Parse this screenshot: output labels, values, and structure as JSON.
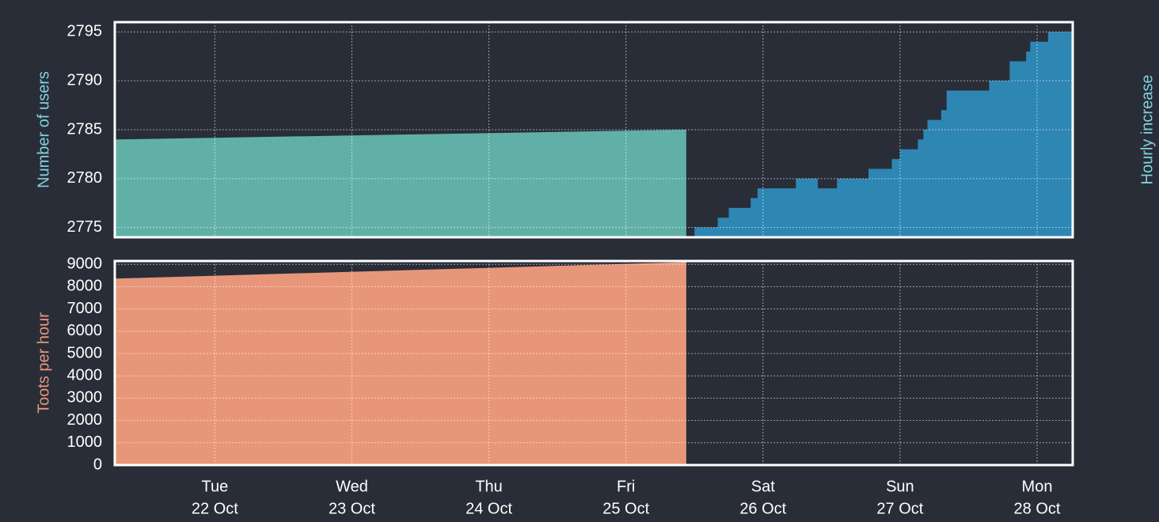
{
  "chart_data": [
    {
      "type": "area",
      "ylabel": "Number of users",
      "y2label": "Hourly increase",
      "xlim": [
        21.27,
        28.26
      ],
      "xticks": [
        22,
        23,
        24,
        25,
        26,
        27,
        28
      ],
      "ylim": [
        2774,
        2796
      ],
      "yticks": [
        2775,
        2780,
        2785,
        2790,
        2795
      ],
      "grid": true,
      "series": [
        {
          "color": "#61b0a7",
          "step": false,
          "x": [
            21.27,
            25.44
          ],
          "values": [
            2784,
            2785
          ]
        },
        {
          "color": "#2e86b3",
          "step": true,
          "x": [
            25.5,
            25.67,
            25.75,
            25.91,
            25.96,
            26.24,
            26.4,
            26.54,
            26.77,
            26.94,
            27.0,
            27.13,
            27.17,
            27.2,
            27.3,
            27.34,
            27.65,
            27.8,
            27.92,
            27.95,
            28.08,
            28.26
          ],
          "values": [
            2775,
            2776,
            2777,
            2778,
            2779,
            2780,
            2779,
            2780,
            2781,
            2782,
            2783,
            2784,
            2785,
            2786,
            2787,
            2789,
            2790,
            2792,
            2793,
            2794,
            2795,
            2795
          ]
        }
      ]
    },
    {
      "type": "area",
      "ylabel": "Toots per hour",
      "xlim": [
        21.27,
        28.26
      ],
      "xticks": [
        {
          "value": 22,
          "label": [
            "Tue",
            "22 Oct"
          ]
        },
        {
          "value": 23,
          "label": [
            "Wed",
            "23 Oct"
          ]
        },
        {
          "value": 24,
          "label": [
            "Thu",
            "24 Oct"
          ]
        },
        {
          "value": 25,
          "label": [
            "Fri",
            "25 Oct"
          ]
        },
        {
          "value": 26,
          "label": [
            "Sat",
            "26 Oct"
          ]
        },
        {
          "value": 27,
          "label": [
            "Sun",
            "27 Oct"
          ]
        },
        {
          "value": 28,
          "label": [
            "Mon",
            "28 Oct"
          ]
        }
      ],
      "ylim": [
        0,
        9150
      ],
      "yticks": [
        0,
        1000,
        2000,
        3000,
        4000,
        5000,
        6000,
        7000,
        8000,
        9000
      ],
      "grid": true,
      "series": [
        {
          "color": "#e8967a",
          "step": false,
          "x": [
            21.27,
            25.44
          ],
          "values": [
            8360,
            9100
          ]
        }
      ]
    }
  ]
}
